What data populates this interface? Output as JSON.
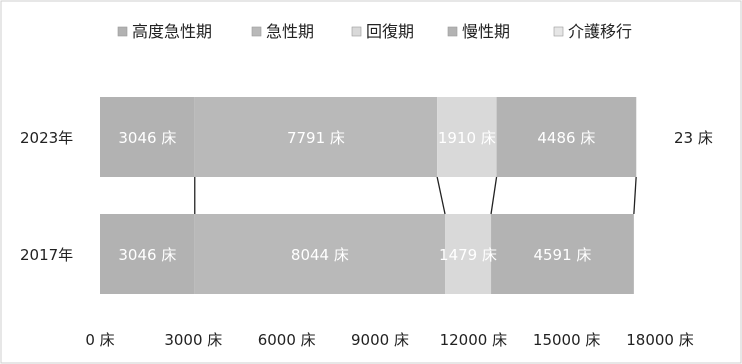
{
  "chart_data": {
    "type": "bar",
    "orientation": "horizontal",
    "stacked": true,
    "unit": "床",
    "categories": [
      "2023年",
      "2017年"
    ],
    "series": [
      {
        "name": "高度急性期",
        "values": [
          3046,
          3046
        ],
        "color": "#b2b2b2"
      },
      {
        "name": "急性期",
        "values": [
          7791,
          8044
        ],
        "color": "#b9b9b9"
      },
      {
        "name": "回復期",
        "values": [
          1910,
          1479
        ],
        "color": "#d9d9d9"
      },
      {
        "name": "慢性期",
        "values": [
          4486,
          4591
        ],
        "color": "#b3b3b3"
      },
      {
        "name": "介護移行",
        "values": [
          23,
          0
        ],
        "color": "#e6e6e6"
      }
    ],
    "data_labels": [
      [
        "3046 床",
        "7791 床",
        "1910 床",
        "4486 床",
        "23 床"
      ],
      [
        "3046 床",
        "8044 床",
        "1479 床",
        "4591 床",
        ""
      ]
    ],
    "xlim": [
      0,
      18000
    ],
    "xticks": [
      0,
      3000,
      6000,
      9000,
      12000,
      15000,
      18000
    ],
    "xtick_labels": [
      "0 床",
      "3000 床",
      "6000 床",
      "9000 床",
      "12000 床",
      "15000 床",
      "18000 床"
    ],
    "legend_position": "top",
    "grid": false,
    "connector_lines": true
  }
}
